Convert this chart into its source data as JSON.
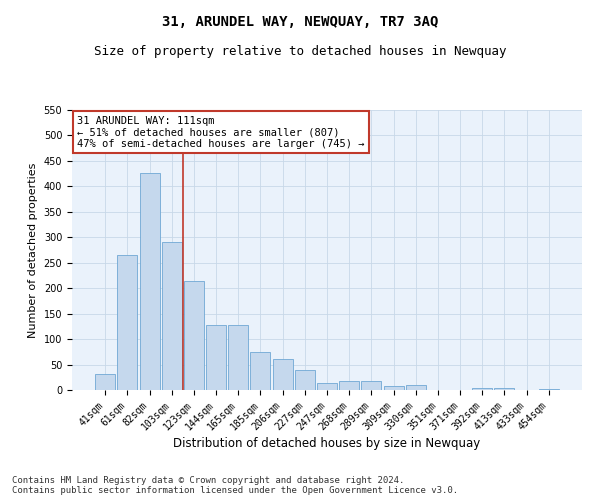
{
  "title": "31, ARUNDEL WAY, NEWQUAY, TR7 3AQ",
  "subtitle": "Size of property relative to detached houses in Newquay",
  "xlabel": "Distribution of detached houses by size in Newquay",
  "ylabel": "Number of detached properties",
  "categories": [
    "41sqm",
    "61sqm",
    "82sqm",
    "103sqm",
    "123sqm",
    "144sqm",
    "165sqm",
    "185sqm",
    "206sqm",
    "227sqm",
    "247sqm",
    "268sqm",
    "289sqm",
    "309sqm",
    "330sqm",
    "351sqm",
    "371sqm",
    "392sqm",
    "413sqm",
    "433sqm",
    "454sqm"
  ],
  "values": [
    32,
    265,
    427,
    291,
    215,
    128,
    128,
    75,
    60,
    39,
    14,
    17,
    17,
    7,
    9,
    0,
    0,
    4,
    3,
    0,
    2
  ],
  "bar_color": "#c5d8ed",
  "bar_edge_color": "#6fa8d4",
  "vline_color": "#c0392b",
  "annotation_text": "31 ARUNDEL WAY: 111sqm\n← 51% of detached houses are smaller (807)\n47% of semi-detached houses are larger (745) →",
  "annotation_box_color": "#ffffff",
  "annotation_box_edge": "#c0392b",
  "ylim": [
    0,
    550
  ],
  "yticks": [
    0,
    50,
    100,
    150,
    200,
    250,
    300,
    350,
    400,
    450,
    500,
    550
  ],
  "grid_color": "#c8d8e8",
  "bg_color": "#eaf2fb",
  "footer": "Contains HM Land Registry data © Crown copyright and database right 2024.\nContains public sector information licensed under the Open Government Licence v3.0.",
  "title_fontsize": 10,
  "subtitle_fontsize": 9,
  "xlabel_fontsize": 8.5,
  "ylabel_fontsize": 8,
  "tick_fontsize": 7,
  "annotation_fontsize": 7.5,
  "footer_fontsize": 6.5,
  "vline_bin_index": 3
}
